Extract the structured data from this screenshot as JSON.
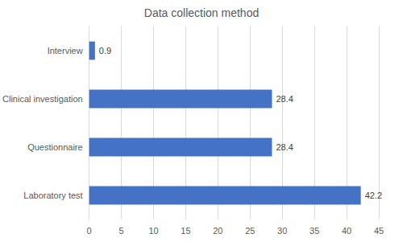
{
  "chart_data": {
    "type": "bar",
    "title": "Data collection method",
    "orientation": "horizontal",
    "categories": [
      "Laboratory test",
      "Questionnaire",
      "Clinical investigation",
      "Interview"
    ],
    "values": [
      42.2,
      28.4,
      28.4,
      0.9
    ],
    "color": "#4472c4",
    "xlim": [
      0,
      45
    ],
    "xticks": [
      0,
      5,
      10,
      15,
      20,
      25,
      30,
      35,
      40,
      45
    ],
    "grid": true,
    "data_labels": true
  }
}
